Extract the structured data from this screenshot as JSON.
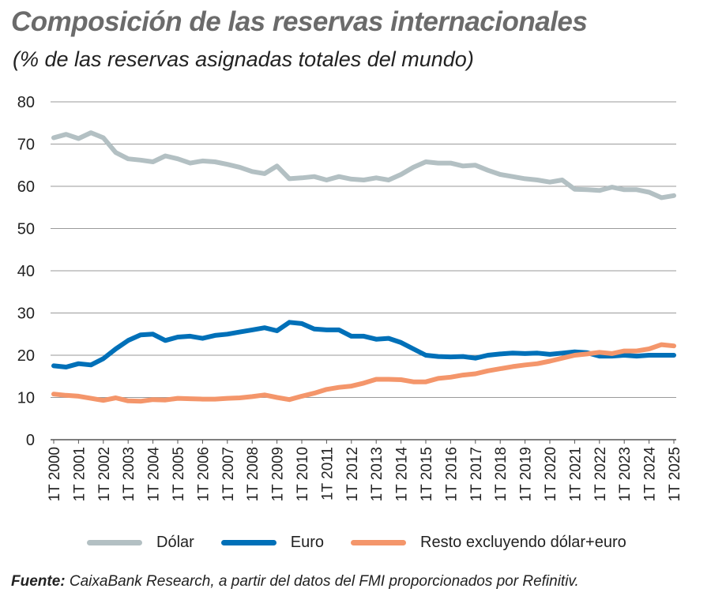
{
  "title": "Composición de las reservas internacionales",
  "subtitle": "(% de las reservas asignadas totales del mundo)",
  "source_label": "Fuente:",
  "source_text": " CaixaBank Research, a partir del datos del FMI proporcionados por Refinitiv.",
  "chart_data": {
    "type": "line",
    "title": "Composición de las reservas internacionales",
    "subtitle": "(% de las reservas asignadas totales del mundo)",
    "ylim": [
      0,
      80
    ],
    "yticks": [
      0,
      10,
      20,
      30,
      40,
      50,
      60,
      70,
      80
    ],
    "grid": true,
    "legend_position": "bottom",
    "xticks": [
      "1T 2000",
      "1T 2001",
      "1T 2002",
      "1T 2003",
      "1T 2004",
      "1T 2005",
      "1T 2006",
      "1T 2007",
      "1T 2008",
      "1T 2009",
      "1T 2010",
      "1T 2011",
      "1T 2012",
      "1T 2013",
      "1T 2014",
      "1T 2015",
      "1T 2016",
      "1T 2017",
      "1T 2018",
      "1T 2019",
      "1T 2020",
      "1T 2021",
      "1T 2022",
      "1T 2023",
      "1T 2024",
      "1T 2025"
    ],
    "x": [
      "1T 2000",
      "3T 2000",
      "1T 2001",
      "3T 2001",
      "1T 2002",
      "3T 2002",
      "1T 2003",
      "3T 2003",
      "1T 2004",
      "3T 2004",
      "1T 2005",
      "3T 2005",
      "1T 2006",
      "3T 2006",
      "1T 2007",
      "3T 2007",
      "1T 2008",
      "3T 2008",
      "1T 2009",
      "3T 2009",
      "1T 2010",
      "3T 2010",
      "1T 2011",
      "3T 2011",
      "1T 2012",
      "3T 2012",
      "1T 2013",
      "3T 2013",
      "1T 2014",
      "3T 2014",
      "1T 2015",
      "3T 2015",
      "1T 2016",
      "3T 2016",
      "1T 2017",
      "3T 2017",
      "1T 2018",
      "3T 2018",
      "1T 2019",
      "3T 2019",
      "1T 2020",
      "3T 2020",
      "1T 2021",
      "3T 2021",
      "1T 2022",
      "3T 2022",
      "1T 2023",
      "3T 2023",
      "1T 2024",
      "3T 2024",
      "1T 2025"
    ],
    "series": [
      {
        "name": "Dólar",
        "color": "#b3c0c3",
        "values": [
          71.5,
          72.3,
          71.3,
          72.7,
          71.5,
          68,
          66.5,
          66.2,
          65.8,
          67.2,
          66.5,
          65.5,
          66,
          65.8,
          65.2,
          64.5,
          63.5,
          63,
          64.8,
          61.8,
          62,
          62.3,
          61.5,
          62.3,
          61.7,
          61.5,
          62,
          61.5,
          62.8,
          64.5,
          65.8,
          65.5,
          65.5,
          64.8,
          65,
          63.8,
          62.8,
          62.3,
          61.8,
          61.5,
          61,
          61.5,
          59.3,
          59.2,
          59,
          59.8,
          59.2,
          59.2,
          58.6,
          57.3,
          57.8
        ]
      },
      {
        "name": "Euro",
        "color": "#0070b8",
        "values": [
          17.5,
          17.2,
          18,
          17.7,
          19.2,
          21.5,
          23.5,
          24.8,
          25,
          23.5,
          24.3,
          24.5,
          24,
          24.7,
          25,
          25.5,
          26,
          26.5,
          25.8,
          27.8,
          27.5,
          26.2,
          26,
          26,
          24.5,
          24.5,
          23.8,
          24,
          23,
          21.5,
          20,
          19.7,
          19.6,
          19.7,
          19.3,
          20,
          20.3,
          20.5,
          20.4,
          20.5,
          20.2,
          20.5,
          20.8,
          20.6,
          19.8,
          19.8,
          20,
          19.8,
          20,
          20,
          20
        ]
      },
      {
        "name": "Resto excluyendo dólar+euro",
        "color": "#f4966b",
        "values": [
          10.8,
          10.5,
          10.3,
          9.8,
          9.3,
          9.9,
          9.2,
          9.1,
          9.5,
          9.4,
          9.8,
          9.7,
          9.6,
          9.6,
          9.8,
          9.9,
          10.2,
          10.6,
          10,
          9.5,
          10.3,
          11,
          11.9,
          12.4,
          12.7,
          13.4,
          14.3,
          14.3,
          14.2,
          13.7,
          13.7,
          14.5,
          14.8,
          15.3,
          15.6,
          16.3,
          16.8,
          17.3,
          17.7,
          18,
          18.6,
          19.3,
          20,
          20.3,
          20.7,
          20.4,
          21,
          21,
          21.5,
          22.5,
          22.2
        ]
      }
    ]
  }
}
